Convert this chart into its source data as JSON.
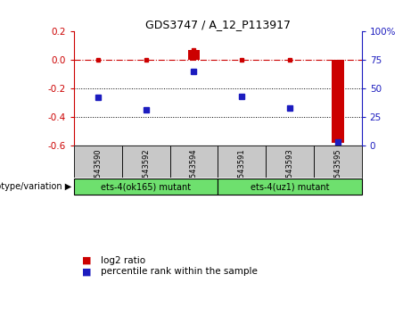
{
  "title": "GDS3747 / A_12_P113917",
  "samples": [
    "GSM543590",
    "GSM543592",
    "GSM543594",
    "GSM543591",
    "GSM543593",
    "GSM543595"
  ],
  "log2_ratio": [
    0.0,
    0.0,
    0.07,
    0.0,
    0.0,
    -0.58
  ],
  "percentile_rank_pct": [
    42,
    31,
    65,
    43,
    33,
    3
  ],
  "ylim_left": [
    -0.6,
    0.2
  ],
  "ylim_right": [
    0,
    100
  ],
  "yticks_left": [
    0.2,
    0.0,
    -0.2,
    -0.4,
    -0.6
  ],
  "yticks_right": [
    100,
    75,
    50,
    25,
    0
  ],
  "group1_label": "ets-4(ok165) mutant",
  "group2_label": "ets-4(uz1) mutant",
  "bar_color_red": "#CC0000",
  "dot_color_blue": "#1C1CBF",
  "line_color": "#CC0000",
  "bg_color_label": "#C8C8C8",
  "bg_color_group": "#6EE06E",
  "dotted_hlines": [
    -0.2,
    -0.4
  ],
  "legend_labels": [
    "log2 ratio",
    "percentile rank within the sample"
  ]
}
